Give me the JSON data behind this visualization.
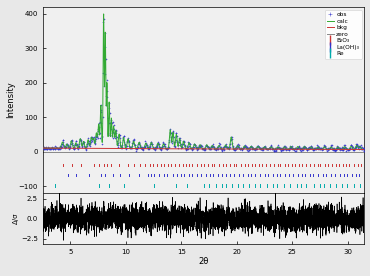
{
  "title": "",
  "xlabel": "2θ",
  "ylabel_main": "Intensity",
  "ylabel_diff": "Δ/σ",
  "xlim": [
    2.5,
    31.5
  ],
  "ylim_main": [
    -120,
    420
  ],
  "ylim_diff": [
    -3.2,
    3.2
  ],
  "legend_entries": [
    "obs",
    "calc",
    "bkg",
    "zero",
    "B₂O₃",
    "La(OH)₃",
    "Re"
  ],
  "obs_color": "#3333cc",
  "calc_color": "#33aa33",
  "bkg_color": "#cc3333",
  "zero_color": "#888888",
  "tick_B2O3_color": "#cc3333",
  "tick_LaOH_color": "#3333cc",
  "tick_Re_color": "#00aaaa",
  "diff_color": "black",
  "background_color": "#e8e8e8",
  "panel_color": "#f0f0f0",
  "xticks": [
    5,
    10,
    15,
    20,
    25,
    30
  ],
  "main_yticks": [
    -100,
    0,
    100,
    200,
    300,
    400
  ],
  "diff_yticks": [
    -2.5,
    0.0,
    2.5
  ],
  "figsize": [
    3.7,
    2.76
  ],
  "dpi": 100
}
